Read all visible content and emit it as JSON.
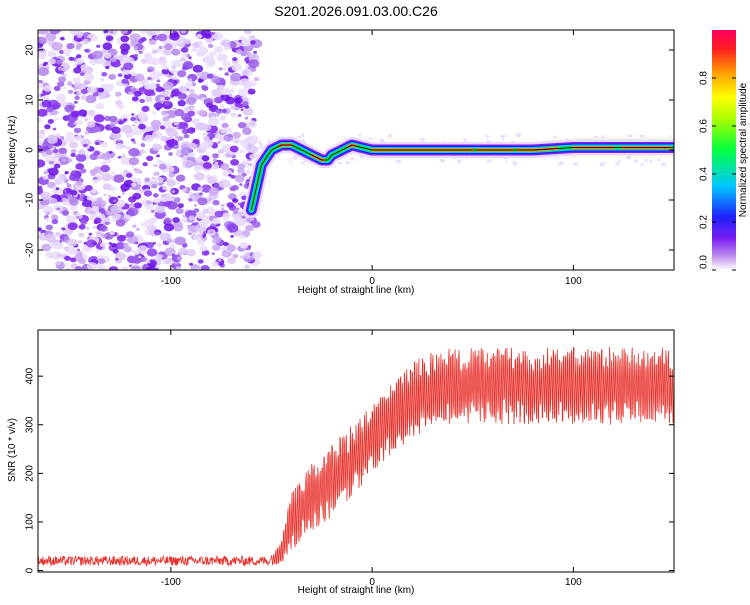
{
  "title": "S201.2026.091.03.00.C26",
  "chart_data": [
    {
      "type": "heatmap",
      "id": "spectrogram",
      "xlabel": "Height of straight line (km)",
      "ylabel": "Frequency (Hz)",
      "xlim": [
        -166,
        150
      ],
      "ylim": [
        -24,
        24
      ],
      "xticks": [
        -100,
        0,
        100
      ],
      "yticks": [
        -20,
        -10,
        0,
        10,
        20
      ],
      "noise_region_x": [
        -166,
        -57
      ],
      "ridge": {
        "x": [
          -60,
          -55,
          -50,
          -45,
          -40,
          -35,
          -30,
          -25,
          -22,
          -20,
          -15,
          -10,
          -5,
          0,
          20,
          40,
          60,
          80,
          100,
          120,
          150
        ],
        "y": [
          -12,
          -3,
          0,
          1,
          1,
          0,
          -1,
          -2,
          -2,
          -1,
          0,
          1,
          0.5,
          0,
          0,
          0,
          0,
          0,
          0.5,
          0.5,
          0.5
        ]
      },
      "colorbar": {
        "label": "Normalized spectral amplitude",
        "range": [
          0,
          1
        ],
        "ticks": [
          0.0,
          0.2,
          0.4,
          0.6,
          0.8
        ],
        "tick_labels": [
          "0.0",
          "0.2",
          "0.4",
          "0.6",
          "0.8"
        ]
      }
    },
    {
      "type": "line",
      "id": "snr",
      "xlabel": "Height of straight line (km)",
      "ylabel": "SNR (10 * v/v)",
      "xlim": [
        -166,
        150
      ],
      "ylim": [
        -3,
        495
      ],
      "xticks": [
        -100,
        0,
        100
      ],
      "yticks": [
        0,
        100,
        200,
        300,
        400
      ],
      "color": "#e8302a",
      "envelope": {
        "x": [
          -166,
          -100,
          -50,
          -45,
          -40,
          -30,
          -20,
          -10,
          0,
          10,
          20,
          30,
          40,
          60,
          100,
          150
        ],
        "low": [
          10,
          10,
          10,
          15,
          40,
          80,
          110,
          150,
          200,
          240,
          270,
          300,
          300,
          300,
          300,
          300
        ],
        "high": [
          30,
          30,
          30,
          60,
          170,
          220,
          260,
          300,
          340,
          390,
          430,
          450,
          460,
          460,
          460,
          460
        ]
      }
    }
  ]
}
